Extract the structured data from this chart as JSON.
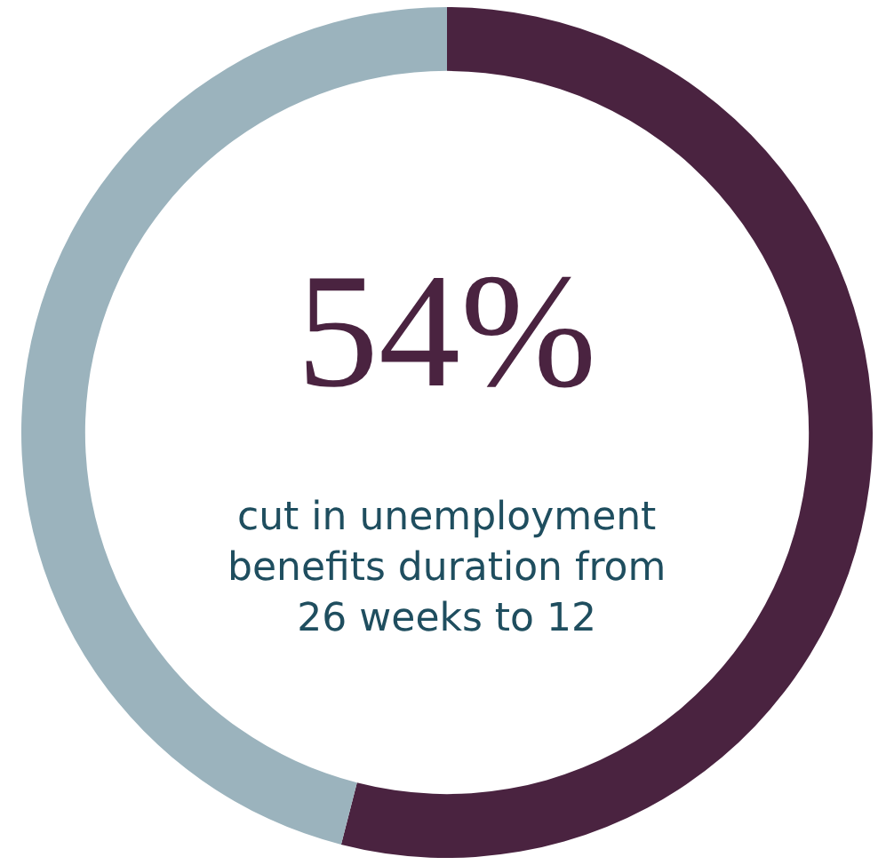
{
  "chart_data": {
    "type": "donut",
    "categories": [
      null,
      null
    ],
    "values": [
      54,
      46
    ],
    "colors": [
      "#4a2340",
      "#9bb3bd"
    ],
    "value_labels": [
      "54%",
      null
    ],
    "annotations": [
      "cut in unemployment\nbenefits duration from\n26 weeks to 12"
    ],
    "legend": false
  }
}
